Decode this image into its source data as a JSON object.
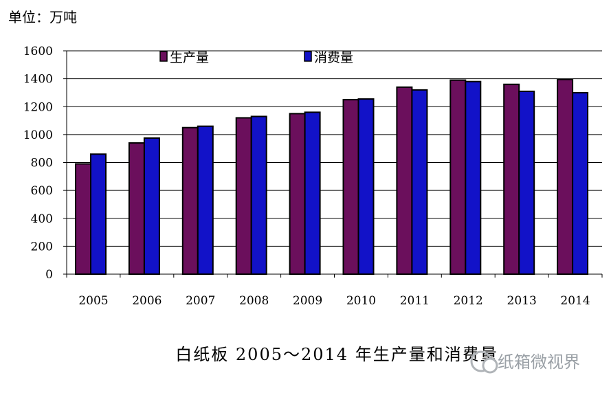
{
  "unit_label": "单位：万吨",
  "watermark": "纸箱微视界",
  "colors": {
    "production": "#6b0f5c",
    "consumption": "#1212c8",
    "grid": "#000000",
    "watermark": "#9aa0a6"
  },
  "chart_data": {
    "type": "bar",
    "title": "白纸板 2005～2014 年生产量和消费量",
    "xlabel": "",
    "ylabel": "",
    "categories": [
      "2005",
      "2006",
      "2007",
      "2008",
      "2009",
      "2010",
      "2011",
      "2012",
      "2013",
      "2014"
    ],
    "series": [
      {
        "name": "生产量",
        "values": [
          790,
          940,
          1050,
          1120,
          1150,
          1250,
          1340,
          1390,
          1360,
          1395
        ]
      },
      {
        "name": "消费量",
        "values": [
          860,
          975,
          1060,
          1130,
          1160,
          1255,
          1320,
          1380,
          1310,
          1300
        ]
      }
    ],
    "ylim": [
      0,
      1600
    ],
    "yticks": [
      "0",
      "200",
      "400",
      "600",
      "800",
      "1000",
      "1200",
      "1400",
      "1600"
    ],
    "grid": true,
    "legend_position": "top"
  }
}
